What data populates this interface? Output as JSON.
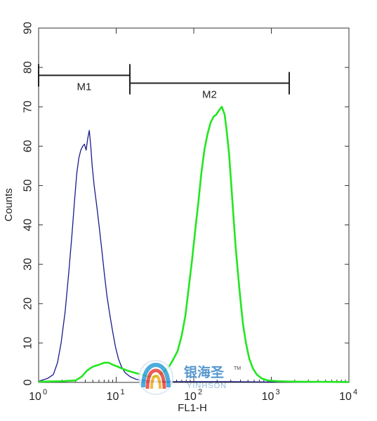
{
  "chart_data": {
    "type": "line",
    "title": "",
    "xlabel": "FL1-H",
    "ylabel": "Counts",
    "x_scale": "log",
    "xlim": [
      1,
      10000
    ],
    "ylim": [
      0,
      90
    ],
    "grid": false,
    "x_ticks": [
      {
        "base": "10",
        "exp": "0",
        "value": 1
      },
      {
        "base": "10",
        "exp": "1",
        "value": 10
      },
      {
        "base": "10",
        "exp": "2",
        "value": 100
      },
      {
        "base": "10",
        "exp": "3",
        "value": 1000
      },
      {
        "base": "10",
        "exp": "4",
        "value": 10000
      }
    ],
    "y_ticks": [
      "0",
      "10",
      "20",
      "30",
      "40",
      "50",
      "60",
      "70",
      "80",
      "90"
    ],
    "markers": [
      {
        "label": "M1",
        "x_start": 1.0,
        "x_end": 15,
        "y": 78
      },
      {
        "label": "M2",
        "x_start": 15,
        "x_end": 1700,
        "y": 76
      }
    ],
    "series": [
      {
        "color": "#1a1a8c",
        "points": [
          [
            1.0,
            0.3
          ],
          [
            1.3,
            1
          ],
          [
            1.55,
            2
          ],
          [
            1.75,
            5
          ],
          [
            1.95,
            10
          ],
          [
            2.2,
            18
          ],
          [
            2.45,
            28
          ],
          [
            2.7,
            38
          ],
          [
            2.9,
            46
          ],
          [
            3.1,
            53
          ],
          [
            3.3,
            57
          ],
          [
            3.5,
            59
          ],
          [
            3.7,
            60
          ],
          [
            3.9,
            60.5
          ],
          [
            4.1,
            59
          ],
          [
            4.3,
            62
          ],
          [
            4.5,
            64
          ],
          [
            4.7,
            60
          ],
          [
            4.9,
            55
          ],
          [
            5.2,
            50
          ],
          [
            5.6,
            45
          ],
          [
            6.0,
            40
          ],
          [
            6.5,
            34
          ],
          [
            7.0,
            28
          ],
          [
            7.6,
            22
          ],
          [
            8.3,
            17
          ],
          [
            9.0,
            13
          ],
          [
            9.8,
            9
          ],
          [
            10.7,
            6
          ],
          [
            11.7,
            4
          ],
          [
            13,
            2.5
          ],
          [
            15,
            1.5
          ],
          [
            18,
            0.8
          ],
          [
            22,
            0.5
          ],
          [
            30,
            0.3
          ],
          [
            50,
            0.2
          ],
          [
            100,
            0.2
          ],
          [
            300,
            0.2
          ],
          [
            1000,
            0.1
          ],
          [
            10000,
            0
          ]
        ]
      },
      {
        "color": "#22e61f",
        "points": [
          [
            1.0,
            0.2
          ],
          [
            2.0,
            0.3
          ],
          [
            3.0,
            0.5
          ],
          [
            3.6,
            1.5
          ],
          [
            4.2,
            3
          ],
          [
            5.0,
            4
          ],
          [
            6.0,
            4.5
          ],
          [
            7.0,
            5
          ],
          [
            8.0,
            5
          ],
          [
            9.0,
            4.5
          ],
          [
            10.5,
            4
          ],
          [
            12,
            3.5
          ],
          [
            14,
            3
          ],
          [
            17,
            2.5
          ],
          [
            21,
            2
          ],
          [
            26,
            1.5
          ],
          [
            32,
            1.5
          ],
          [
            40,
            2.5
          ],
          [
            48,
            4
          ],
          [
            55,
            6
          ],
          [
            62,
            8
          ],
          [
            70,
            12
          ],
          [
            78,
            17
          ],
          [
            86,
            24
          ],
          [
            95,
            31
          ],
          [
            105,
            39
          ],
          [
            115,
            46
          ],
          [
            125,
            53
          ],
          [
            137,
            59
          ],
          [
            150,
            63
          ],
          [
            165,
            66
          ],
          [
            180,
            67.5
          ],
          [
            195,
            68
          ],
          [
            210,
            69
          ],
          [
            230,
            70
          ],
          [
            250,
            68
          ],
          [
            265,
            64
          ],
          [
            285,
            58
          ],
          [
            305,
            50
          ],
          [
            325,
            42
          ],
          [
            345,
            35
          ],
          [
            370,
            28
          ],
          [
            400,
            21
          ],
          [
            430,
            15
          ],
          [
            470,
            10
          ],
          [
            520,
            6
          ],
          [
            580,
            3.5
          ],
          [
            650,
            2
          ],
          [
            750,
            1
          ],
          [
            900,
            0.5
          ],
          [
            1200,
            0.3
          ],
          [
            2000,
            0.2
          ],
          [
            10000,
            0.1
          ]
        ]
      }
    ]
  },
  "watermark": {
    "text_cn": "银海圣",
    "tm": "TM",
    "text_en": "YINHSON"
  }
}
